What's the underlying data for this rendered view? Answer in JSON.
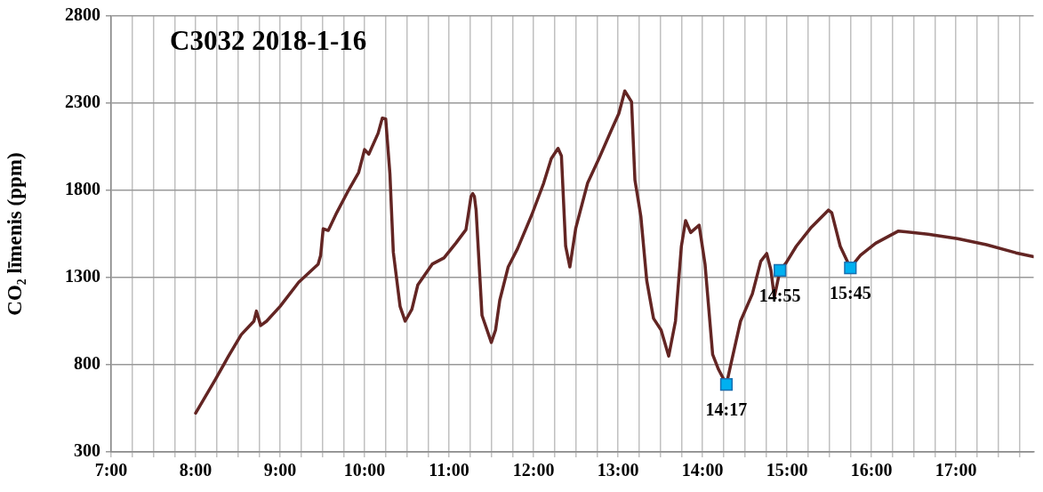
{
  "chart_data": {
    "type": "line",
    "title": "C3032 2018-1-16",
    "ylabel": "CO₂ līmenis (ppm)",
    "xlim": [
      7,
      17.92
    ],
    "ylim": [
      300,
      2800
    ],
    "xticks": [
      {
        "value": 7,
        "label": "7:00"
      },
      {
        "value": 7.25,
        "label": null
      },
      {
        "value": 7.5,
        "label": null
      },
      {
        "value": 7.75,
        "label": null
      },
      {
        "value": 8,
        "label": "8:00"
      },
      {
        "value": 8.25,
        "label": null
      },
      {
        "value": 8.5,
        "label": null
      },
      {
        "value": 8.75,
        "label": null
      },
      {
        "value": 9,
        "label": "9:00"
      },
      {
        "value": 9.25,
        "label": null
      },
      {
        "value": 9.5,
        "label": null
      },
      {
        "value": 9.75,
        "label": null
      },
      {
        "value": 10,
        "label": "10:00"
      },
      {
        "value": 10.25,
        "label": null
      },
      {
        "value": 10.5,
        "label": null
      },
      {
        "value": 10.75,
        "label": null
      },
      {
        "value": 11,
        "label": "11:00"
      },
      {
        "value": 11.25,
        "label": null
      },
      {
        "value": 11.5,
        "label": null
      },
      {
        "value": 11.75,
        "label": null
      },
      {
        "value": 12,
        "label": "12:00"
      },
      {
        "value": 12.25,
        "label": null
      },
      {
        "value": 12.5,
        "label": null
      },
      {
        "value": 12.75,
        "label": null
      },
      {
        "value": 13,
        "label": "13:00"
      },
      {
        "value": 13.25,
        "label": null
      },
      {
        "value": 13.5,
        "label": null
      },
      {
        "value": 13.75,
        "label": null
      },
      {
        "value": 14,
        "label": "14:00"
      },
      {
        "value": 14.25,
        "label": null
      },
      {
        "value": 14.5,
        "label": null
      },
      {
        "value": 14.75,
        "label": null
      },
      {
        "value": 15,
        "label": "15:00"
      },
      {
        "value": 15.25,
        "label": null
      },
      {
        "value": 15.5,
        "label": null
      },
      {
        "value": 15.75,
        "label": null
      },
      {
        "value": 16,
        "label": "16:00"
      },
      {
        "value": 16.25,
        "label": null
      },
      {
        "value": 16.5,
        "label": null
      },
      {
        "value": 16.75,
        "label": null
      },
      {
        "value": 17,
        "label": "17:00"
      },
      {
        "value": 17.25,
        "label": null
      },
      {
        "value": 17.5,
        "label": null
      },
      {
        "value": 17.75,
        "label": null
      }
    ],
    "yticks": [
      300,
      800,
      1300,
      1800,
      2300,
      2800
    ],
    "grid": true,
    "legend": false,
    "line_style": "solid",
    "series": [
      {
        "type": "line",
        "color": "#632523",
        "marker": "none",
        "x": [
          8.0,
          8.23,
          8.39,
          8.54,
          8.69,
          8.72,
          8.77,
          8.84,
          9.0,
          9.22,
          9.45,
          9.48,
          9.51,
          9.57,
          9.67,
          9.81,
          9.93,
          10.0,
          10.05,
          10.16,
          10.21,
          10.25,
          10.3,
          10.34,
          10.42,
          10.48,
          10.56,
          10.63,
          10.8,
          10.94,
          11.08,
          11.2,
          11.24,
          11.26,
          11.28,
          11.3,
          11.32,
          11.39,
          11.5,
          11.55,
          11.6,
          11.7,
          11.81,
          11.98,
          12.12,
          12.21,
          12.29,
          12.33,
          12.38,
          12.43,
          12.5,
          12.64,
          12.78,
          12.92,
          13.01,
          13.08,
          13.16,
          13.2,
          13.27,
          13.34,
          13.42,
          13.51,
          13.6,
          13.68,
          13.75,
          13.8,
          13.86,
          13.96,
          14.03,
          14.12,
          14.19,
          14.283,
          14.33,
          14.45,
          14.59,
          14.69,
          14.76,
          14.81,
          14.85,
          14.917,
          14.99,
          15.11,
          15.28,
          15.49,
          15.53,
          15.63,
          15.75,
          15.87,
          16.05,
          16.32,
          16.67,
          17.02,
          17.36,
          17.71,
          17.92
        ],
        "values": [
          523,
          713,
          850,
          973,
          1050,
          1108,
          1025,
          1050,
          1135,
          1273,
          1377,
          1428,
          1580,
          1570,
          1672,
          1801,
          1903,
          2034,
          2008,
          2127,
          2215,
          2210,
          1894,
          1446,
          1135,
          1050,
          1118,
          1258,
          1377,
          1413,
          1497,
          1575,
          1700,
          1765,
          1782,
          1765,
          1687,
          1083,
          928,
          999,
          1170,
          1361,
          1465,
          1661,
          1842,
          1982,
          2041,
          1998,
          1480,
          1361,
          1584,
          1842,
          1989,
          2144,
          2241,
          2370,
          2308,
          1860,
          1652,
          1283,
          1066,
          999,
          850,
          1050,
          1480,
          1627,
          1558,
          1601,
          1377,
          859,
          773,
          687,
          790,
          1050,
          1206,
          1394,
          1438,
          1342,
          1187,
          1342,
          1385,
          1480,
          1584,
          1687,
          1672,
          1480,
          1356,
          1428,
          1497,
          1567,
          1549,
          1523,
          1489,
          1442,
          1420
        ]
      },
      {
        "type": "scatter",
        "color": "#00b0f0",
        "marker": "square",
        "x": [
          14.283,
          14.917,
          15.75
        ],
        "values": [
          687,
          1342,
          1356
        ]
      }
    ],
    "annotations": [
      {
        "text": "14:17",
        "x": 14.283,
        "y": 687
      },
      {
        "text": "14:55",
        "x": 14.917,
        "y": 1342
      },
      {
        "text": "15:45",
        "x": 15.75,
        "y": 1356
      }
    ]
  }
}
